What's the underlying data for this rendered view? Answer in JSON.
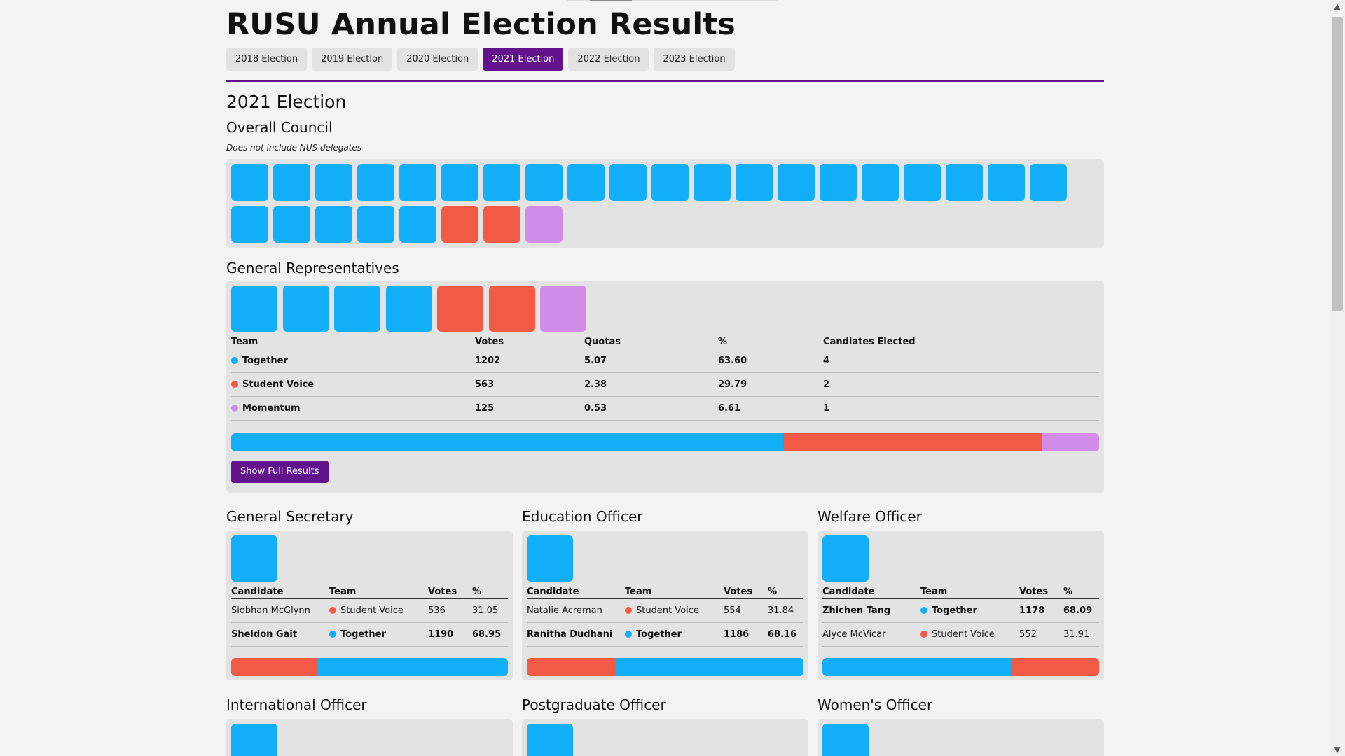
{
  "page": {
    "title": "RUSU Annual Election Results"
  },
  "tabs": [
    {
      "label": "2018 Election",
      "active": false
    },
    {
      "label": "2019 Election",
      "active": false
    },
    {
      "label": "2020 Election",
      "active": false
    },
    {
      "label": "2021 Election",
      "active": true
    },
    {
      "label": "2022 Election",
      "active": false
    },
    {
      "label": "2023 Election",
      "active": false
    }
  ],
  "colors": {
    "accent": "#62138b",
    "together": "#12aef7",
    "student_voice": "#f35a46",
    "momentum": "#d08ce6",
    "panel": "#e3e3e3"
  },
  "election": {
    "heading": "2021 Election",
    "overall_council": {
      "title": "Overall Council",
      "note": "Does not include NUS delegates",
      "seats": [
        "together",
        "together",
        "together",
        "together",
        "together",
        "together",
        "together",
        "together",
        "together",
        "together",
        "together",
        "together",
        "together",
        "together",
        "together",
        "together",
        "together",
        "together",
        "together",
        "together",
        "together",
        "together",
        "together",
        "together",
        "together",
        "voice",
        "voice",
        "momentum"
      ]
    },
    "general_reps": {
      "title": "General Representatives",
      "seats": [
        "together",
        "together",
        "together",
        "together",
        "voice",
        "voice",
        "momentum"
      ],
      "headers": [
        "Team",
        "Votes",
        "Quotas",
        "%",
        "Candiates Elected"
      ],
      "rows": [
        {
          "team": "Together",
          "color": "together",
          "votes": "1202",
          "quotas": "5.07",
          "pct": "63.60",
          "elected": "4"
        },
        {
          "team": "Student Voice",
          "color": "voice",
          "votes": "563",
          "quotas": "2.38",
          "pct": "29.79",
          "elected": "2"
        },
        {
          "team": "Momentum",
          "color": "momentum",
          "votes": "125",
          "quotas": "0.53",
          "pct": "6.61",
          "elected": "1"
        }
      ],
      "share": [
        {
          "color": "together",
          "pct": 63.6
        },
        {
          "color": "voice",
          "pct": 29.79
        },
        {
          "color": "momentum",
          "pct": 6.61
        }
      ],
      "button": "Show Full Results"
    },
    "officers_headers": [
      "Candidate",
      "Team",
      "Votes",
      "%"
    ],
    "officers": [
      {
        "title": "General Secretary",
        "winner": "together",
        "rows": [
          {
            "candidate": "Siobhan McGlynn",
            "team": "Student Voice",
            "color": "voice",
            "votes": "536",
            "pct": "31.05",
            "bold": false
          },
          {
            "candidate": "Sheldon Gait",
            "team": "Together",
            "color": "together",
            "votes": "1190",
            "pct": "68.95",
            "bold": true
          }
        ],
        "share": [
          {
            "color": "voice",
            "pct": 31.05
          },
          {
            "color": "together",
            "pct": 68.95
          }
        ]
      },
      {
        "title": "Education Officer",
        "winner": "together",
        "rows": [
          {
            "candidate": "Natalie Acreman",
            "team": "Student Voice",
            "color": "voice",
            "votes": "554",
            "pct": "31.84",
            "bold": false
          },
          {
            "candidate": "Ranitha Dudhani",
            "team": "Together",
            "color": "together",
            "votes": "1186",
            "pct": "68.16",
            "bold": true
          }
        ],
        "share": [
          {
            "color": "voice",
            "pct": 31.84
          },
          {
            "color": "together",
            "pct": 68.16
          }
        ]
      },
      {
        "title": "Welfare Officer",
        "winner": "together",
        "rows": [
          {
            "candidate": "Zhichen Tang",
            "team": "Together",
            "color": "together",
            "votes": "1178",
            "pct": "68.09",
            "bold": true
          },
          {
            "candidate": "Alyce McVicar",
            "team": "Student Voice",
            "color": "voice",
            "votes": "552",
            "pct": "31.91",
            "bold": false
          }
        ],
        "share": [
          {
            "color": "together",
            "pct": 68.09
          },
          {
            "color": "voice",
            "pct": 31.91
          }
        ]
      }
    ],
    "more_officers": [
      {
        "title": "International Officer",
        "winner": "together"
      },
      {
        "title": "Postgraduate Officer",
        "winner": "together"
      },
      {
        "title": "Women's Officer",
        "winner": "together"
      }
    ]
  }
}
